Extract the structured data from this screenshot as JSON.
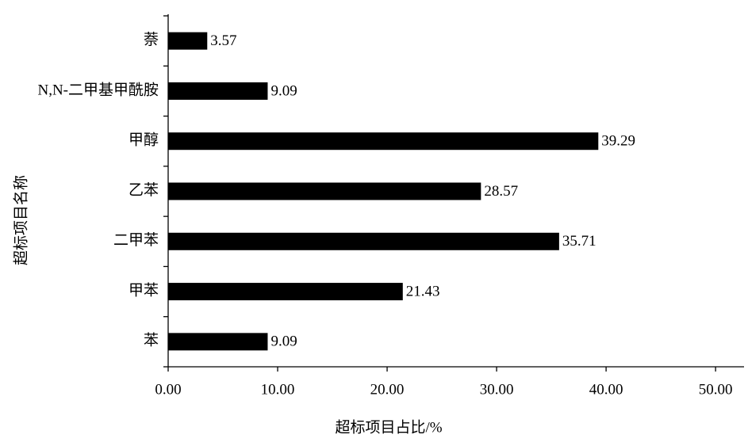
{
  "chart_data": {
    "type": "hbar",
    "x_label": "超标项目占比/%",
    "y_label": "超标项目名称",
    "categories": [
      "萘",
      "N,N-二甲基甲酰胺",
      "甲醇",
      "乙苯",
      "二甲苯",
      "甲苯",
      "苯"
    ],
    "values": [
      3.57,
      9.09,
      39.29,
      28.57,
      35.71,
      21.43,
      9.09
    ],
    "color": "#000000",
    "xlim": [
      0,
      52.6
    ],
    "xticks": [
      {
        "value": 0,
        "label": "0.00"
      },
      {
        "value": 10,
        "label": "10.00"
      },
      {
        "value": 20,
        "label": "20.00"
      },
      {
        "value": 30,
        "label": "30.00"
      },
      {
        "value": 40,
        "label": "40.00"
      },
      {
        "value": 50,
        "label": "50.00"
      }
    ],
    "grid": false
  }
}
